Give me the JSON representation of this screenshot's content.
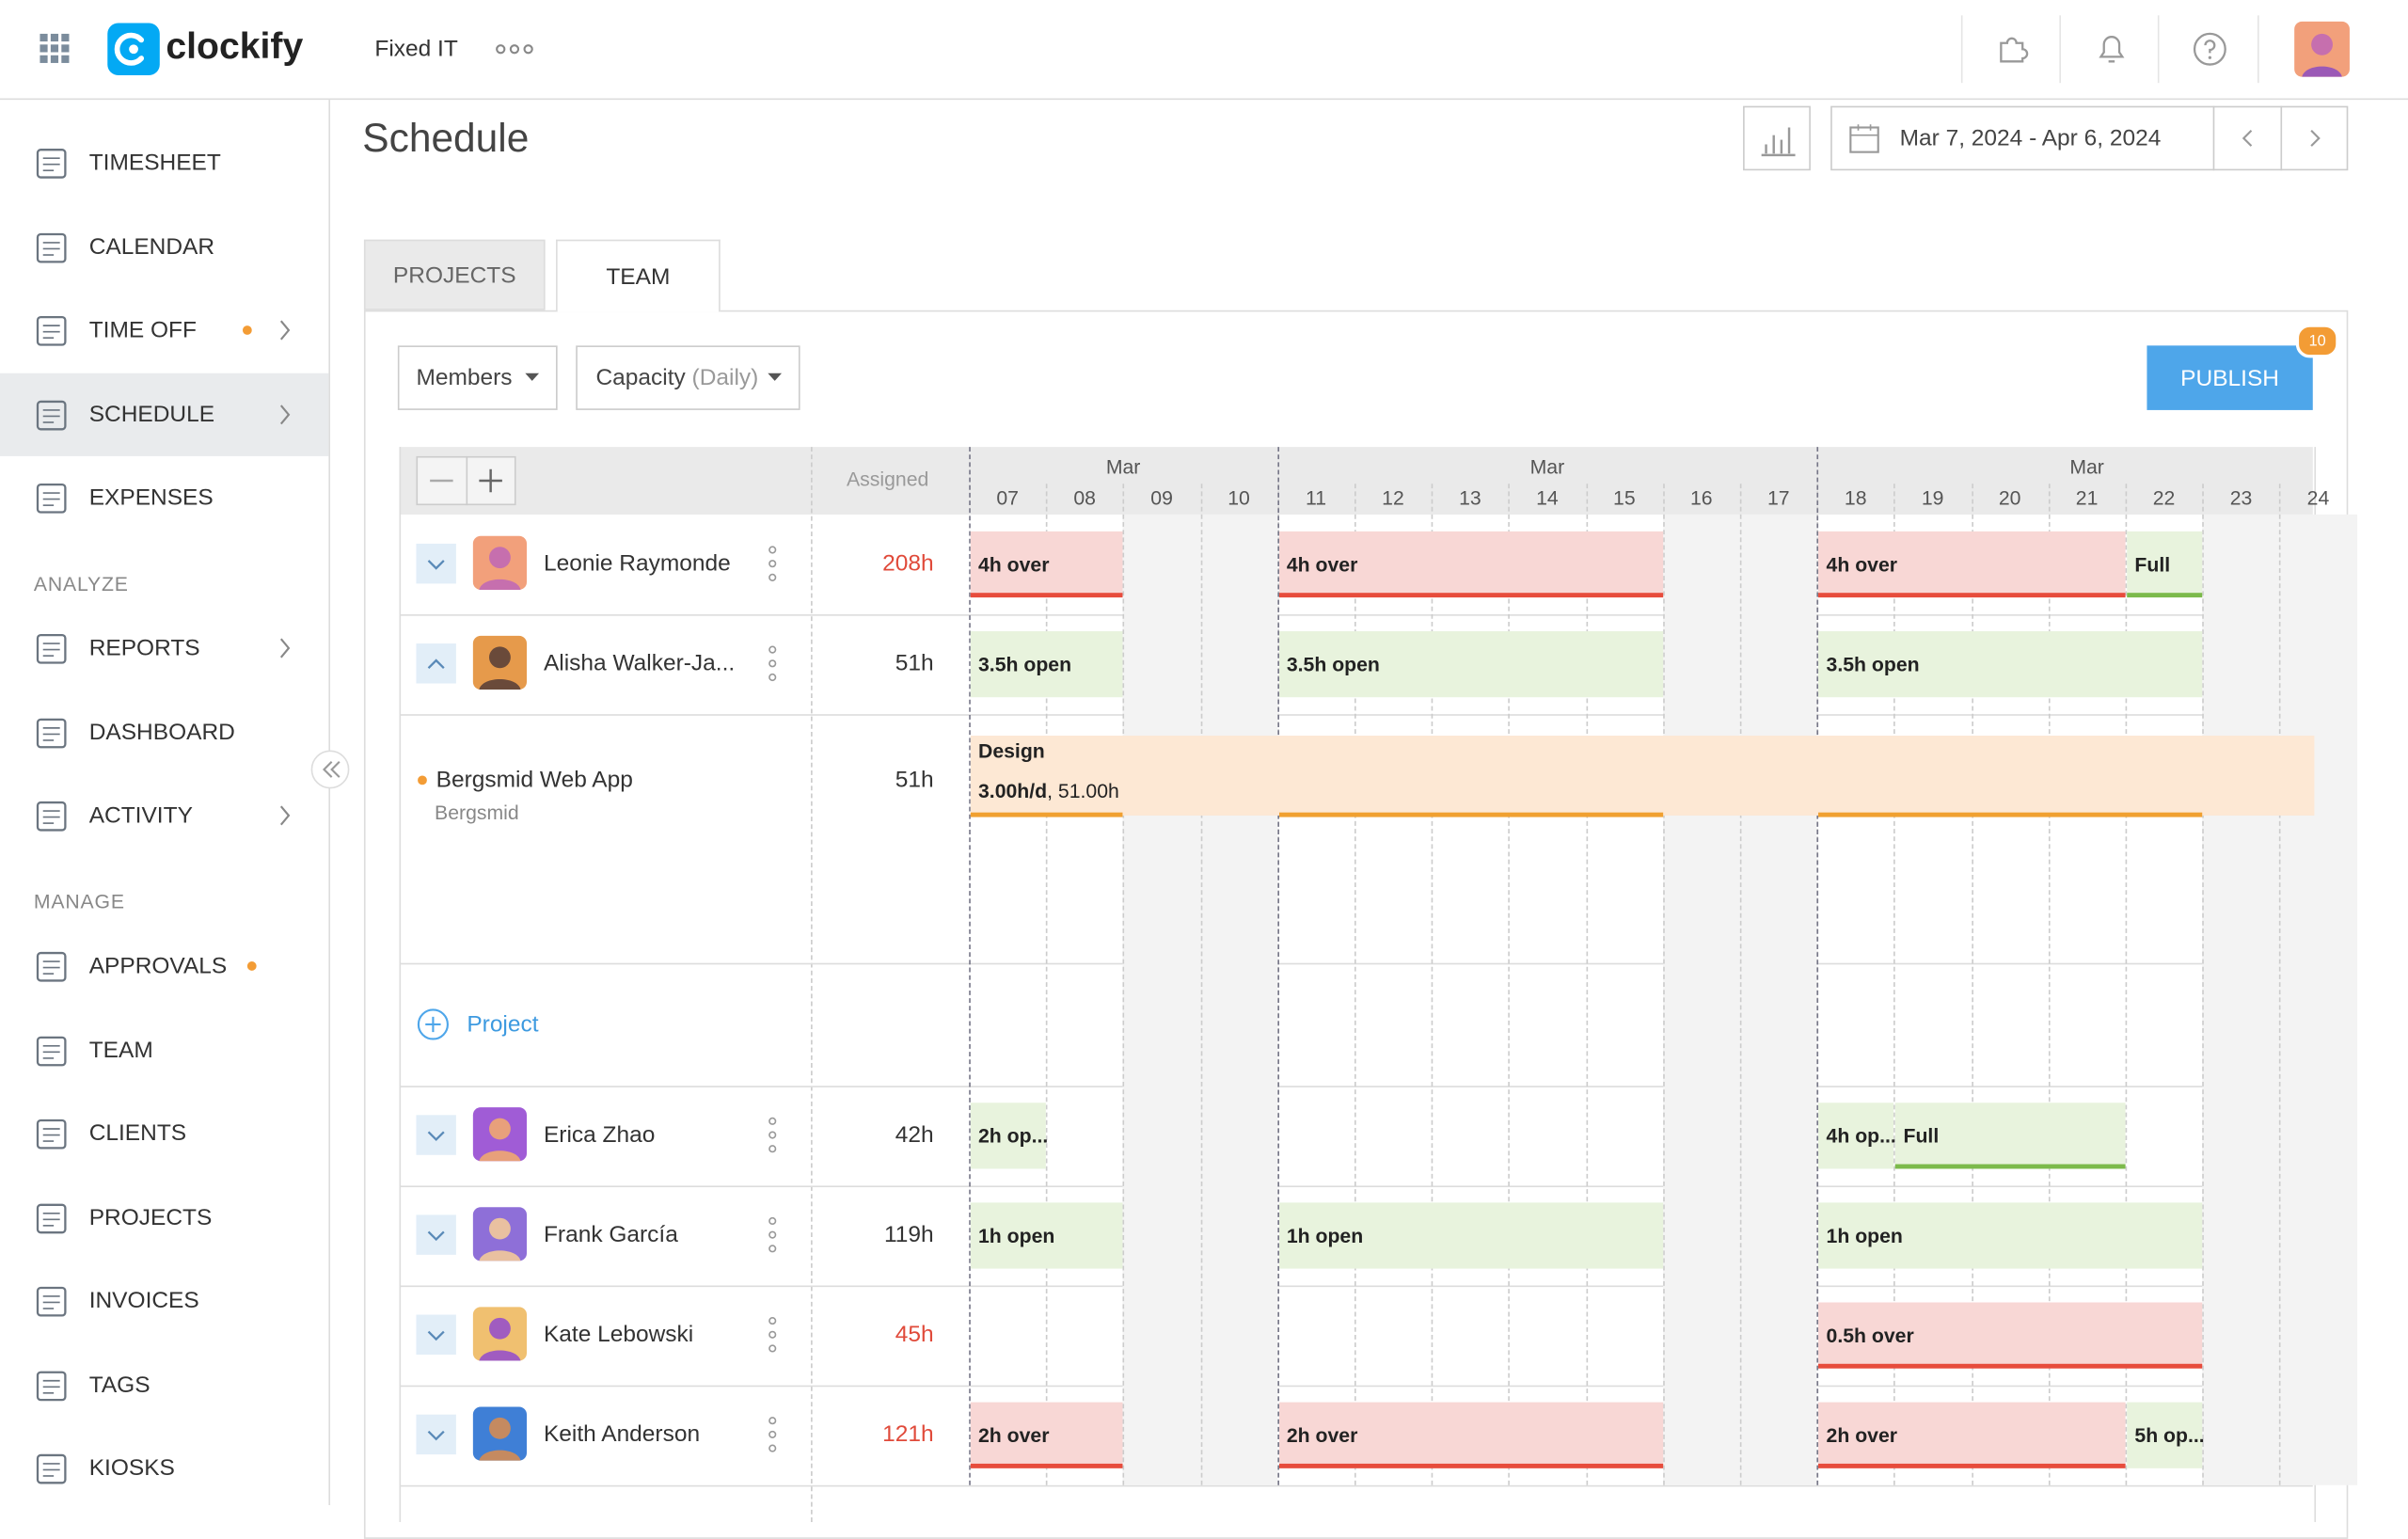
{
  "header": {
    "logo": "clockify",
    "workspace": "Fixed IT"
  },
  "sidebar": {
    "main": [
      {
        "label": "TIMESHEET"
      },
      {
        "label": "CALENDAR"
      },
      {
        "label": "TIME OFF",
        "dot": true,
        "arrow": true
      },
      {
        "label": "SCHEDULE",
        "arrow": true,
        "active": true
      },
      {
        "label": "EXPENSES"
      }
    ],
    "analyze_title": "ANALYZE",
    "analyze": [
      {
        "label": "REPORTS",
        "arrow": true
      },
      {
        "label": "DASHBOARD"
      },
      {
        "label": "ACTIVITY",
        "arrow": true
      }
    ],
    "manage_title": "MANAGE",
    "manage": [
      {
        "label": "APPROVALS",
        "dot": true
      },
      {
        "label": "TEAM"
      },
      {
        "label": "CLIENTS"
      },
      {
        "label": "PROJECTS"
      },
      {
        "label": "INVOICES"
      },
      {
        "label": "TAGS"
      },
      {
        "label": "KIOSKS"
      }
    ]
  },
  "page": {
    "title": "Schedule",
    "date_range": "Mar 7, 2024 - Apr 6, 2024",
    "tabs": [
      "PROJECTS",
      "TEAM"
    ],
    "active_tab": "TEAM",
    "filters": {
      "members": "Members",
      "capacity": "Capacity",
      "capacity_unit": "(Daily)"
    },
    "publish": "PUBLISH",
    "publish_count": "10"
  },
  "schedule": {
    "assigned_header": "Assigned",
    "weeks": [
      {
        "month": "Mar",
        "days": [
          "07",
          "08",
          "09",
          "10"
        ]
      },
      {
        "month": "Mar",
        "days": [
          "11",
          "12",
          "13",
          "14",
          "15",
          "16",
          "17"
        ]
      },
      {
        "month": "Mar",
        "days": [
          "18",
          "19",
          "20",
          "21",
          "22",
          "23",
          "24"
        ]
      }
    ],
    "shaded_days": [
      "09",
      "10",
      "16",
      "17",
      "23",
      "24"
    ],
    "rows": [
      {
        "kind": "member",
        "name": "Leonie Raymonde",
        "assigned": "208h",
        "overloaded": true,
        "bars": [
          {
            "label": "4h over",
            "status": "over",
            "from": "07",
            "to": "08"
          },
          {
            "label": "4h over",
            "status": "over",
            "from": "11",
            "to": "15"
          },
          {
            "label": "4h over",
            "status": "over",
            "from": "18",
            "to": "21"
          },
          {
            "label": "Full",
            "status": "full",
            "from": "22",
            "to": "22"
          }
        ]
      },
      {
        "kind": "member",
        "name": "Alisha Walker-Ja...",
        "assigned": "51h",
        "expanded": true,
        "bars": [
          {
            "label": "3.5h open",
            "status": "open",
            "from": "07",
            "to": "08"
          },
          {
            "label": "3.5h open",
            "status": "open",
            "from": "11",
            "to": "15"
          },
          {
            "label": "3.5h open",
            "status": "open",
            "from": "18",
            "to": "22"
          }
        ]
      },
      {
        "kind": "project",
        "name": "Bergsmid Web App",
        "client": "Bergsmid",
        "assigned": "51h",
        "task": "Design",
        "rate": "3.00h/d",
        "rest": ", 51.00h",
        "from": "07"
      },
      {
        "kind": "add",
        "label": "Project"
      },
      {
        "kind": "member",
        "name": "Erica Zhao",
        "assigned": "42h",
        "bars": [
          {
            "label": "2h op...",
            "status": "open",
            "from": "07",
            "to": "07"
          },
          {
            "label": "4h op...",
            "status": "open",
            "from": "18",
            "to": "18"
          },
          {
            "label": "Full",
            "status": "full",
            "from": "19",
            "to": "21"
          }
        ]
      },
      {
        "kind": "member",
        "name": "Frank García",
        "assigned": "119h",
        "bars": [
          {
            "label": "1h open",
            "status": "open",
            "from": "07",
            "to": "08"
          },
          {
            "label": "1h open",
            "status": "open",
            "from": "11",
            "to": "15"
          },
          {
            "label": "1h open",
            "status": "open",
            "from": "18",
            "to": "22"
          }
        ]
      },
      {
        "kind": "member",
        "name": "Kate Lebowski",
        "assigned": "45h",
        "overloaded": true,
        "bars": [
          {
            "label": "0.5h over",
            "status": "over",
            "from": "18",
            "to": "22"
          }
        ]
      },
      {
        "kind": "member",
        "name": "Keith Anderson",
        "assigned": "121h",
        "overloaded": true,
        "bars": [
          {
            "label": "2h over",
            "status": "over",
            "from": "07",
            "to": "08"
          },
          {
            "label": "2h over",
            "status": "over",
            "from": "11",
            "to": "15"
          },
          {
            "label": "2h over",
            "status": "over",
            "from": "18",
            "to": "21"
          },
          {
            "label": "5h op...",
            "status": "open",
            "from": "22",
            "to": "22"
          }
        ]
      }
    ]
  }
}
